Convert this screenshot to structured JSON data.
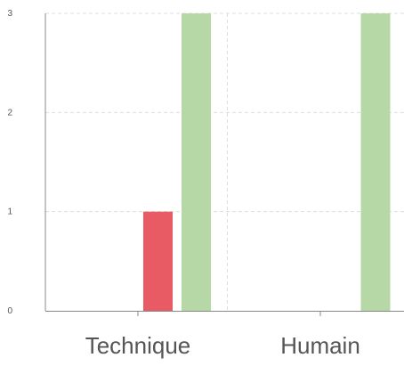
{
  "chart_data": {
    "type": "bar",
    "categories": [
      "Technique",
      "Humain"
    ],
    "series": [
      {
        "values": [
          0,
          0
        ],
        "color": "#7fa6d6"
      },
      {
        "values": [
          1,
          0
        ],
        "color": "#e85a64"
      },
      {
        "values": [
          3,
          3
        ],
        "color": "#b5d8a6"
      }
    ],
    "y_ticks": [
      "0",
      "1",
      "2",
      "3"
    ],
    "ylim": [
      0,
      3
    ],
    "title": "",
    "xlabel": "",
    "ylabel": "",
    "grid": true,
    "legend": "none"
  },
  "colors": {
    "grid": "#dddddd",
    "axis": "#888888",
    "text": "#555555"
  }
}
